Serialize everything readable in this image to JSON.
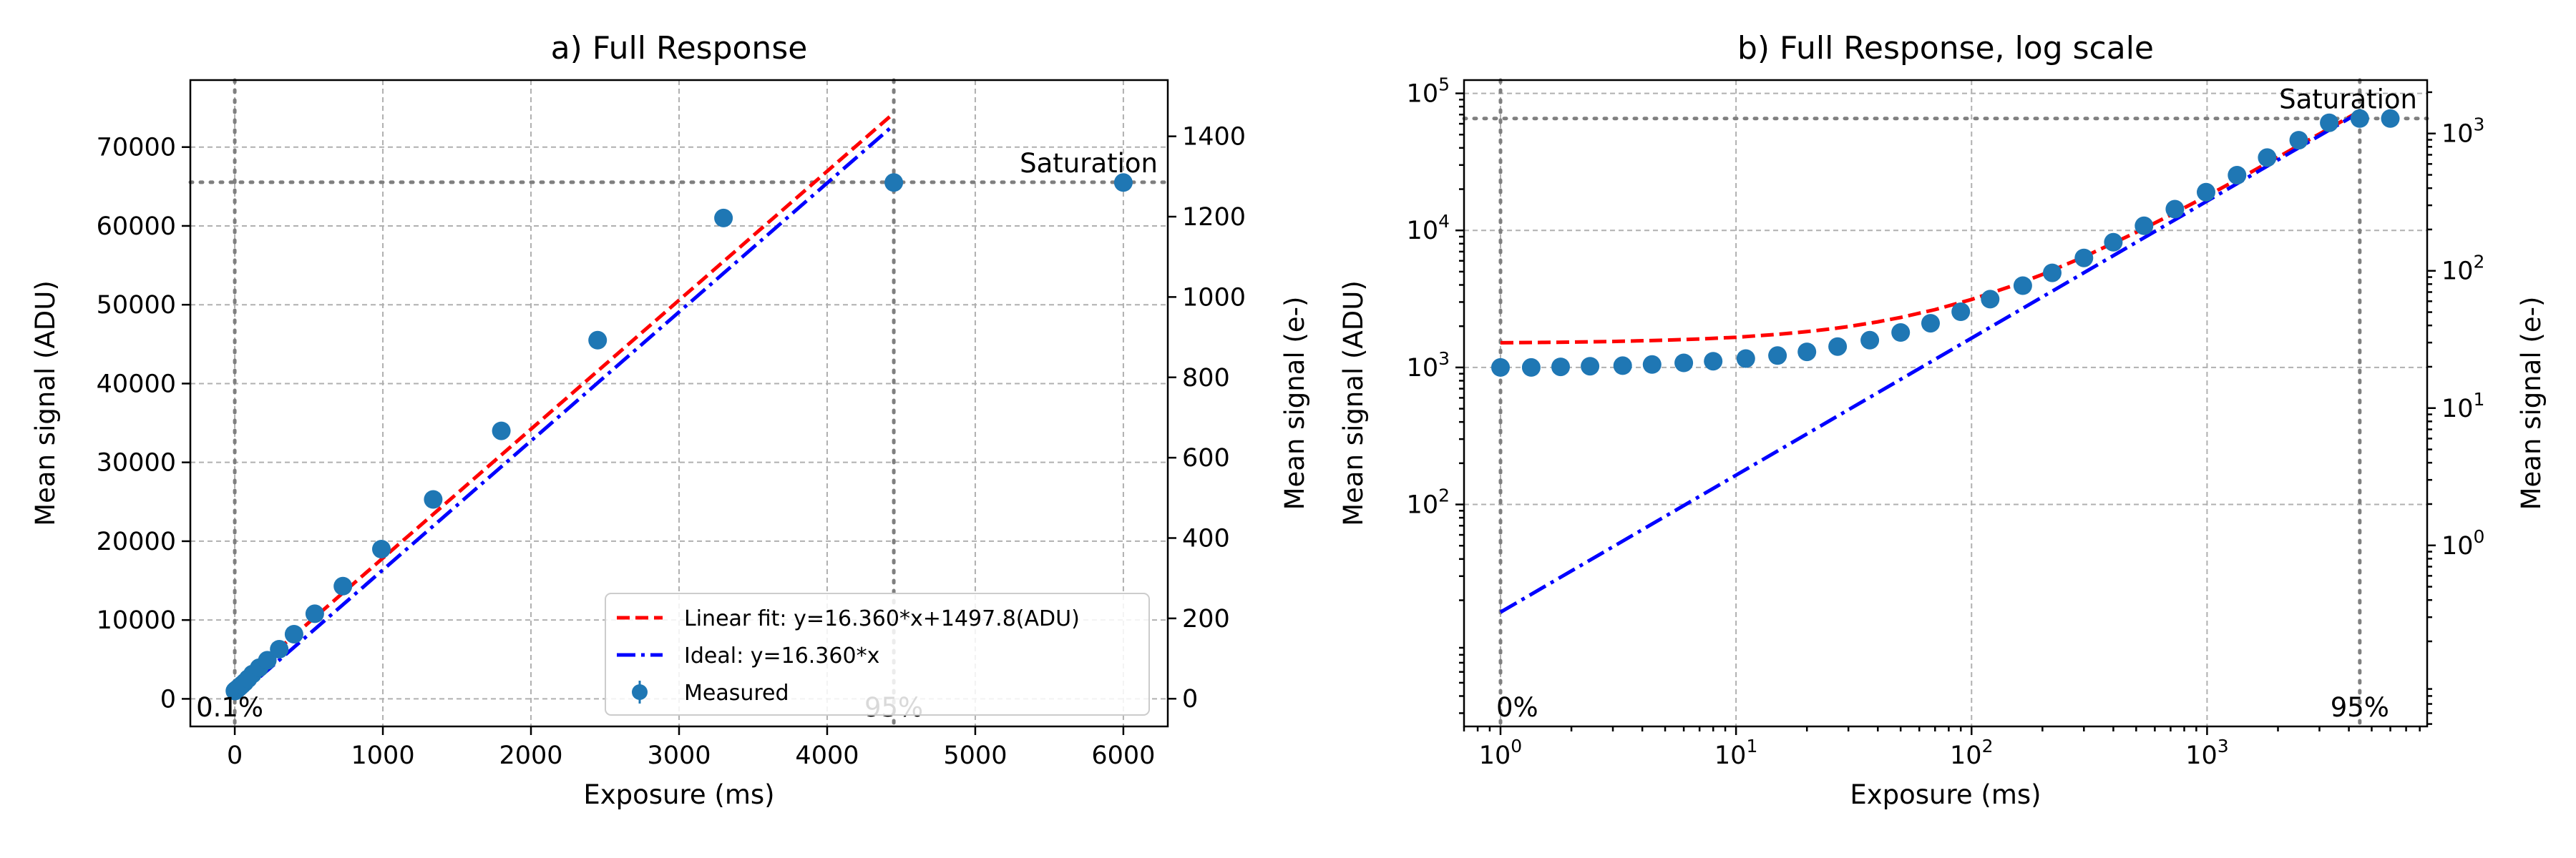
{
  "colors": {
    "linear_fit": "#ff0000",
    "ideal": "#0000ff",
    "measured": "#1f77b4",
    "reference": "#7f7f7f",
    "grid": "#b0b0b0"
  },
  "chart_data": [
    {
      "type": "scatter",
      "title": "a) Full Response",
      "xlabel": "Exposure (ms)",
      "ylabel": "Mean signal (ADU)",
      "y2label": "Mean signal (e-)",
      "xscale": "linear",
      "yscale": "linear",
      "xlim": [
        -300,
        6300
      ],
      "ylim": [
        -3500,
        78500
      ],
      "y2lim": [
        -69,
        1540
      ],
      "xticks": [
        0,
        1000,
        2000,
        3000,
        4000,
        5000,
        6000
      ],
      "xtick_labels": [
        "0",
        "1000",
        "2000",
        "3000",
        "4000",
        "5000",
        "6000"
      ],
      "yticks": [
        0,
        10000,
        20000,
        30000,
        40000,
        50000,
        60000,
        70000
      ],
      "ytick_labels": [
        "0",
        "10000",
        "20000",
        "30000",
        "40000",
        "50000",
        "60000",
        "70000"
      ],
      "y2ticks": [
        0,
        200,
        400,
        600,
        800,
        1000,
        1200,
        1400
      ],
      "y2tick_labels": [
        "0",
        "200",
        "400",
        "600",
        "800",
        "1000",
        "1200",
        "1400"
      ],
      "grid": true,
      "legend_position": "lower-right",
      "series": [
        {
          "name": "Linear fit: y=16.360*x+1497.8(ADU)",
          "kind": "line",
          "style": "dashed",
          "color": "#ff0000",
          "x": [
            0,
            4450
          ],
          "y": [
            1497.8,
            74300
          ]
        },
        {
          "name": "Ideal: y=16.360*x",
          "kind": "line",
          "style": "dashdot",
          "color": "#0000ff",
          "x": [
            0,
            4450
          ],
          "y": [
            0,
            72802
          ]
        },
        {
          "name": "Measured",
          "kind": "points",
          "color": "#1f77b4",
          "x": [
            1,
            1.35,
            1.8,
            2.4,
            3.3,
            4.4,
            6,
            8,
            11,
            15,
            20,
            27,
            37,
            50,
            67,
            90,
            120,
            165,
            220,
            300,
            400,
            540,
            730,
            990,
            1340,
            1800,
            2450,
            3300,
            4450,
            6000
          ],
          "y": [
            1000,
            1000,
            1010,
            1020,
            1030,
            1050,
            1080,
            1110,
            1160,
            1220,
            1300,
            1420,
            1580,
            1800,
            2100,
            2550,
            3150,
            3950,
            4900,
            6300,
            8200,
            10800,
            14300,
            19000,
            25300,
            34000,
            45500,
            61000,
            65500,
            65500
          ]
        }
      ],
      "reference_lines": [
        {
          "orientation": "horizontal",
          "value": 65535
        },
        {
          "orientation": "vertical",
          "value": 0
        },
        {
          "orientation": "vertical",
          "value": 4450
        }
      ],
      "annotations": [
        {
          "text": "Saturation"
        },
        {
          "text": "0.1%"
        },
        {
          "text": "95%"
        }
      ]
    },
    {
      "type": "scatter",
      "title": "b) Full Response, log scale",
      "xlabel": "Exposure (ms)",
      "ylabel": "Mean signal (ADU)",
      "y2label": "Mean signal (e-)",
      "xscale": "log",
      "yscale": "log",
      "xlim": [
        0.7,
        8600
      ],
      "ylim": [
        2.4,
        125000
      ],
      "y2lim": [
        0.048,
        2450
      ],
      "xticks": [
        1,
        10,
        100,
        1000
      ],
      "xtick_labels": [
        {
          "base": "10",
          "exp": "0"
        },
        {
          "base": "10",
          "exp": "1"
        },
        {
          "base": "10",
          "exp": "2"
        },
        {
          "base": "10",
          "exp": "3"
        }
      ],
      "yticks": [
        100,
        1000,
        10000,
        100000
      ],
      "ytick_labels": [
        {
          "base": "10",
          "exp": "2"
        },
        {
          "base": "10",
          "exp": "3"
        },
        {
          "base": "10",
          "exp": "4"
        },
        {
          "base": "10",
          "exp": "5"
        }
      ],
      "y2ticks": [
        1,
        10,
        100,
        1000
      ],
      "y2tick_labels": [
        {
          "base": "10",
          "exp": "0"
        },
        {
          "base": "10",
          "exp": "1"
        },
        {
          "base": "10",
          "exp": "2"
        },
        {
          "base": "10",
          "exp": "3"
        }
      ],
      "grid": true,
      "series": [
        {
          "kind": "line",
          "style": "dashed",
          "color": "#ff0000",
          "x": [
            1,
            1.5,
            2,
            3,
            5,
            7,
            10,
            15,
            20,
            25,
            30,
            40,
            50,
            70,
            100,
            150,
            200,
            300,
            500,
            700,
            1000,
            1500,
            2000,
            3000,
            4450
          ],
          "y": [
            1514,
            1522,
            1530,
            1547,
            1580,
            1612,
            1661,
            1743,
            1825,
            1907,
            1989,
            2152,
            2316,
            2643,
            3134,
            3952,
            4770,
            6406,
            9678,
            12950,
            17858,
            26038,
            34218,
            50578,
            74300
          ]
        },
        {
          "kind": "line",
          "style": "dashdot",
          "color": "#0000ff",
          "x": [
            1,
            4450
          ],
          "y": [
            16.36,
            72802
          ]
        },
        {
          "kind": "points",
          "color": "#1f77b4",
          "x": [
            1,
            1.35,
            1.8,
            2.4,
            3.3,
            4.4,
            6,
            8,
            11,
            15,
            20,
            27,
            37,
            50,
            67,
            90,
            120,
            165,
            220,
            300,
            400,
            540,
            730,
            990,
            1340,
            1800,
            2450,
            3300,
            4450,
            6000
          ],
          "y": [
            1000,
            1000,
            1010,
            1020,
            1030,
            1050,
            1080,
            1110,
            1160,
            1220,
            1300,
            1420,
            1580,
            1800,
            2100,
            2550,
            3150,
            3950,
            4900,
            6300,
            8200,
            10800,
            14300,
            19000,
            25300,
            34000,
            45500,
            61000,
            65500,
            65500
          ]
        }
      ],
      "reference_lines": [
        {
          "orientation": "horizontal",
          "value": 65535
        },
        {
          "orientation": "vertical",
          "value": 1
        },
        {
          "orientation": "vertical",
          "value": 4450
        }
      ],
      "annotations": [
        {
          "text": "Saturation"
        },
        {
          "text": "0%"
        },
        {
          "text": "95%"
        }
      ]
    }
  ]
}
